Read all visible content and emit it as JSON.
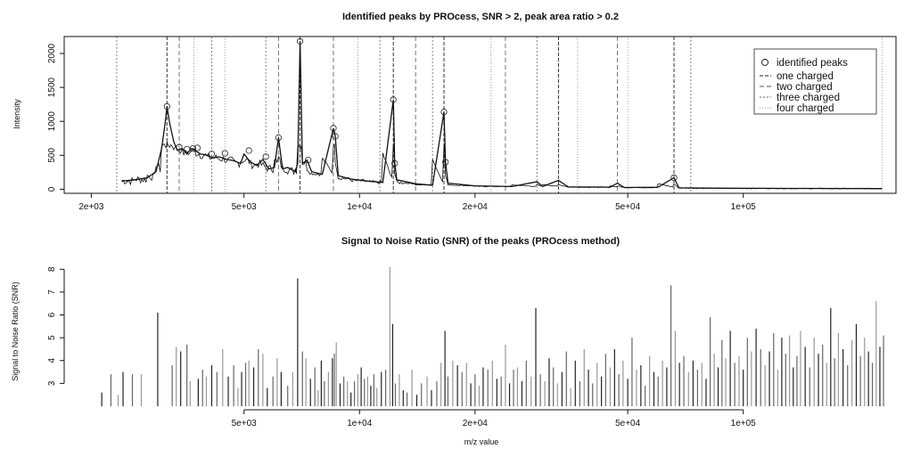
{
  "colors": {
    "line": "#111111",
    "axis": "#111111",
    "background": "#ffffff",
    "legend_border": "#222222",
    "snr_dark": "#222222",
    "snr_light": "#888888"
  },
  "chart_data": [
    {
      "type": "line",
      "title": "Identified peaks by PROcess, SNR > 2, peak area ratio > 0.2",
      "xlabel": "",
      "ylabel": "Intensity",
      "xscale": "log",
      "xlim": [
        1700,
        250000
      ],
      "ylim": [
        -60,
        2250
      ],
      "xticks": [
        2000,
        5000,
        10000,
        20000,
        50000,
        100000
      ],
      "xtick_labels": [
        "2e+03",
        "5e+03",
        "1e+04",
        "2e+04",
        "5e+04",
        "1e+05"
      ],
      "yticks": [
        0,
        500,
        1000,
        1500,
        2000
      ],
      "ytick_labels": [
        "0",
        "500",
        "1000",
        "1500",
        "2000"
      ],
      "grid": false,
      "legend_position": "top-right",
      "legend": [
        {
          "label": "identified peaks",
          "marker": "circle"
        },
        {
          "label": "one charged",
          "style": "dashed"
        },
        {
          "label": "two charged",
          "style": "dashed"
        },
        {
          "label": "three charged",
          "style": "dotted"
        },
        {
          "label": "four charged",
          "style": "dotted"
        }
      ],
      "spectrum": [
        [
          2400,
          120
        ],
        [
          2600,
          140
        ],
        [
          2800,
          170
        ],
        [
          2950,
          260
        ],
        [
          3050,
          600
        ],
        [
          3120,
          1000
        ],
        [
          3150,
          1220
        ],
        [
          3200,
          980
        ],
        [
          3280,
          700
        ],
        [
          3350,
          580
        ],
        [
          3450,
          600
        ],
        [
          3550,
          520
        ],
        [
          3650,
          600
        ],
        [
          3750,
          560
        ],
        [
          3850,
          520
        ],
        [
          4000,
          500
        ],
        [
          4150,
          460
        ],
        [
          4300,
          480
        ],
        [
          4500,
          440
        ],
        [
          4700,
          420
        ],
        [
          4900,
          380
        ],
        [
          5000,
          520
        ],
        [
          5200,
          400
        ],
        [
          5400,
          350
        ],
        [
          5600,
          440
        ],
        [
          5800,
          300
        ],
        [
          6000,
          320
        ],
        [
          6150,
          760
        ],
        [
          6300,
          300
        ],
        [
          6500,
          320
        ],
        [
          6800,
          260
        ],
        [
          6900,
          380
        ],
        [
          7000,
          2180
        ],
        [
          7100,
          380
        ],
        [
          7300,
          430
        ],
        [
          7500,
          260
        ],
        [
          8000,
          220
        ],
        [
          8550,
          900
        ],
        [
          8650,
          780
        ],
        [
          8800,
          200
        ],
        [
          9500,
          150
        ],
        [
          10500,
          120
        ],
        [
          11500,
          100
        ],
        [
          12250,
          1320
        ],
        [
          12350,
          400
        ],
        [
          12500,
          140
        ],
        [
          14000,
          80
        ],
        [
          15500,
          60
        ],
        [
          16600,
          1140
        ],
        [
          16750,
          400
        ],
        [
          17000,
          90
        ],
        [
          20000,
          50
        ],
        [
          25000,
          40
        ],
        [
          29000,
          110
        ],
        [
          30000,
          40
        ],
        [
          33000,
          130
        ],
        [
          35000,
          35
        ],
        [
          45000,
          30
        ],
        [
          47000,
          90
        ],
        [
          49000,
          25
        ],
        [
          60000,
          30
        ],
        [
          66000,
          170
        ],
        [
          68000,
          20
        ],
        [
          90000,
          15
        ],
        [
          130000,
          12
        ],
        [
          230000,
          10
        ]
      ],
      "peaks": [
        [
          3150,
          1220
        ],
        [
          3390,
          620
        ],
        [
          3550,
          590
        ],
        [
          3680,
          600
        ],
        [
          3780,
          610
        ],
        [
          4120,
          520
        ],
        [
          4460,
          530
        ],
        [
          5150,
          570
        ],
        [
          5700,
          480
        ],
        [
          6150,
          760
        ],
        [
          7000,
          2180
        ],
        [
          7350,
          430
        ],
        [
          8550,
          900
        ],
        [
          8650,
          780
        ],
        [
          12250,
          1320
        ],
        [
          12350,
          380
        ],
        [
          16600,
          1140
        ],
        [
          16750,
          400
        ],
        [
          66000,
          170
        ]
      ],
      "charge_lines": {
        "one_charged": [
          3150,
          7000,
          12250,
          16600,
          33000,
          66000
        ],
        "two_charged": [
          3390,
          6150,
          8550,
          14000,
          24000,
          47000
        ],
        "three_charged": [
          2330,
          4120,
          5700,
          11300,
          15500,
          29000,
          73000
        ],
        "four_charged": [
          3700,
          4460,
          9900,
          22000,
          37000,
          50000,
          230000
        ]
      }
    },
    {
      "type": "bar",
      "title": "Signal to Noise Ratio (SNR) of the peaks (PROcess method)",
      "xlabel": "m/z value",
      "ylabel": "Signal to Noise Ratio (SNR)",
      "xscale": "log",
      "xlim": [
        1700,
        250000
      ],
      "ylim": [
        2,
        8.4
      ],
      "xticks": [
        5000,
        10000,
        20000,
        50000,
        100000
      ],
      "xtick_labels": [
        "5e+03",
        "1e+04",
        "2e+04",
        "5e+04",
        "1e+05"
      ],
      "yticks": [
        3,
        4,
        5,
        6,
        7,
        8
      ],
      "ytick_labels": [
        "3",
        "4",
        "5",
        "6",
        "7",
        "8"
      ],
      "grid": false,
      "bars": [
        [
          2130,
          2.6
        ],
        [
          2250,
          3.4
        ],
        [
          2350,
          2.5
        ],
        [
          2420,
          3.5
        ],
        [
          2560,
          3.4
        ],
        [
          2700,
          3.4
        ],
        [
          2980,
          6.1
        ],
        [
          3250,
          3.8
        ],
        [
          3330,
          4.6
        ],
        [
          3420,
          4.4
        ],
        [
          3550,
          4.7
        ],
        [
          3620,
          3.1
        ],
        [
          3800,
          3.2
        ],
        [
          3900,
          3.6
        ],
        [
          3990,
          3.3
        ],
        [
          4120,
          3.8
        ],
        [
          4250,
          3.5
        ],
        [
          4400,
          4.5
        ],
        [
          4550,
          3.3
        ],
        [
          4700,
          3.8
        ],
        [
          4820,
          2.8
        ],
        [
          4930,
          3.5
        ],
        [
          5050,
          3.9
        ],
        [
          5150,
          4.0
        ],
        [
          5300,
          3.7
        ],
        [
          5450,
          4.5
        ],
        [
          5600,
          4.3
        ],
        [
          5750,
          2.8
        ],
        [
          5950,
          3.3
        ],
        [
          6100,
          4.1
        ],
        [
          6250,
          3.5
        ],
        [
          6500,
          2.9
        ],
        [
          6700,
          3.5
        ],
        [
          6900,
          7.6
        ],
        [
          7100,
          4.4
        ],
        [
          7250,
          4.1
        ],
        [
          7450,
          3.2
        ],
        [
          7650,
          3.7
        ],
        [
          7800,
          2.7
        ],
        [
          7950,
          4.0
        ],
        [
          8100,
          3.1
        ],
        [
          8300,
          3.5
        ],
        [
          8500,
          4.1
        ],
        [
          8600,
          4.3
        ],
        [
          8700,
          4.8
        ],
        [
          8900,
          3.0
        ],
        [
          9100,
          3.3
        ],
        [
          9300,
          3.1
        ],
        [
          9500,
          2.6
        ],
        [
          9700,
          3.1
        ],
        [
          9900,
          3.4
        ],
        [
          10100,
          3.7
        ],
        [
          10300,
          3.2
        ],
        [
          10500,
          3.3
        ],
        [
          10700,
          2.9
        ],
        [
          10900,
          3.4
        ],
        [
          11100,
          2.8
        ],
        [
          11400,
          3.5
        ],
        [
          11700,
          3.6
        ],
        [
          12000,
          8.1
        ],
        [
          12200,
          5.6
        ],
        [
          12400,
          3.0
        ],
        [
          12700,
          3.4
        ],
        [
          13000,
          2.7
        ],
        [
          13300,
          2.6
        ],
        [
          13700,
          3.6
        ],
        [
          14100,
          2.5
        ],
        [
          14500,
          3.0
        ],
        [
          15000,
          3.3
        ],
        [
          15400,
          2.7
        ],
        [
          15900,
          3.1
        ],
        [
          16300,
          3.9
        ],
        [
          16700,
          5.3
        ],
        [
          17000,
          3.3
        ],
        [
          17500,
          4.0
        ],
        [
          18000,
          3.8
        ],
        [
          18500,
          3.5
        ],
        [
          19000,
          3.9
        ],
        [
          19500,
          3.0
        ],
        [
          20000,
          3.4
        ],
        [
          20500,
          2.9
        ],
        [
          21000,
          3.7
        ],
        [
          21600,
          3.6
        ],
        [
          22200,
          4.0
        ],
        [
          22800,
          3.2
        ],
        [
          23400,
          3.3
        ],
        [
          24000,
          4.7
        ],
        [
          24600,
          3.0
        ],
        [
          25200,
          3.6
        ],
        [
          25800,
          3.7
        ],
        [
          26500,
          3.1
        ],
        [
          27200,
          4.0
        ],
        [
          28000,
          3.3
        ],
        [
          28800,
          6.3
        ],
        [
          29600,
          3.4
        ],
        [
          30400,
          3.1
        ],
        [
          31200,
          4.1
        ],
        [
          32000,
          3.7
        ],
        [
          32800,
          3.0
        ],
        [
          33700,
          3.5
        ],
        [
          34600,
          4.4
        ],
        [
          35500,
          2.8
        ],
        [
          36500,
          4.0
        ],
        [
          37500,
          3.1
        ],
        [
          38500,
          4.5
        ],
        [
          39500,
          3.6
        ],
        [
          40500,
          3.0
        ],
        [
          41600,
          3.9
        ],
        [
          42700,
          3.3
        ],
        [
          43800,
          4.3
        ],
        [
          45000,
          3.7
        ],
        [
          46200,
          4.5
        ],
        [
          47400,
          3.4
        ],
        [
          48600,
          4.0
        ],
        [
          50000,
          3.2
        ],
        [
          51300,
          5.0
        ],
        [
          52700,
          3.6
        ],
        [
          54100,
          3.8
        ],
        [
          55500,
          2.9
        ],
        [
          57000,
          4.2
        ],
        [
          58500,
          3.5
        ],
        [
          60000,
          3.3
        ],
        [
          61600,
          4.0
        ],
        [
          63200,
          3.7
        ],
        [
          64800,
          7.3
        ],
        [
          66500,
          5.3
        ],
        [
          68200,
          3.9
        ],
        [
          70000,
          4.2
        ],
        [
          72000,
          3.5
        ],
        [
          74000,
          4.0
        ],
        [
          76000,
          3.6
        ],
        [
          78000,
          3.9
        ],
        [
          80000,
          3.2
        ],
        [
          82000,
          5.9
        ],
        [
          84000,
          4.3
        ],
        [
          86000,
          3.7
        ],
        [
          88000,
          4.9
        ],
        [
          90000,
          4.1
        ],
        [
          92500,
          5.3
        ],
        [
          95000,
          3.9
        ],
        [
          97500,
          4.2
        ],
        [
          100000,
          3.6
        ],
        [
          102500,
          5.0
        ],
        [
          105000,
          4.4
        ],
        [
          108000,
          5.4
        ],
        [
          111000,
          4.5
        ],
        [
          114000,
          3.8
        ],
        [
          117000,
          4.4
        ],
        [
          120000,
          5.2
        ],
        [
          123000,
          3.6
        ],
        [
          126000,
          5.0
        ],
        [
          129000,
          4.3
        ],
        [
          132000,
          5.1
        ],
        [
          135000,
          3.7
        ],
        [
          138000,
          4.2
        ],
        [
          141000,
          5.3
        ],
        [
          145000,
          4.6
        ],
        [
          149000,
          3.7
        ],
        [
          153000,
          5.0
        ],
        [
          157000,
          4.3
        ],
        [
          161000,
          4.7
        ],
        [
          165000,
          3.9
        ],
        [
          169000,
          6.3
        ],
        [
          173000,
          4.1
        ],
        [
          177000,
          5.2
        ],
        [
          182000,
          4.5
        ],
        [
          187000,
          3.8
        ],
        [
          192000,
          4.9
        ],
        [
          197000,
          5.6
        ],
        [
          202000,
          4.2
        ],
        [
          207000,
          5.0
        ],
        [
          212000,
          4.4
        ],
        [
          217000,
          3.9
        ],
        [
          222000,
          6.6
        ],
        [
          227000,
          4.6
        ],
        [
          232000,
          5.1
        ]
      ]
    }
  ]
}
